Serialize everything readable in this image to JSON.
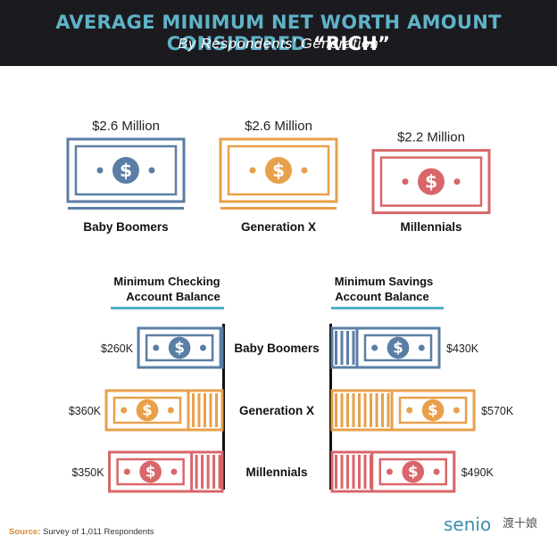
{
  "title_main": "Average Minimum Net Worth Amount Considered ",
  "title_quote": "“Rich”",
  "subtitle": "By Respondents' Generation",
  "colors": {
    "boomers": "#5b7ea6",
    "genx": "#e8a04a",
    "millennials": "#d9666a",
    "teal": "#4fb0c6",
    "dark": "#1b1b1f"
  },
  "chart_data": [
    {
      "type": "bar",
      "title": "Average Minimum Net Worth Amount Considered “Rich”",
      "subtitle": "By Respondents' Generation",
      "categories": [
        "Baby Boomers",
        "Generation X",
        "Millennials"
      ],
      "values": [
        2.6,
        2.6,
        2.2
      ],
      "labels": [
        "$2.6 Million",
        "$2.6 Million",
        "$2.2 Million"
      ],
      "unit": "Million $"
    },
    {
      "type": "bar",
      "title": "Minimum Checking Account Balance",
      "categories": [
        "Baby Boomers",
        "Generation X",
        "Millennials"
      ],
      "values": [
        260,
        360,
        350
      ],
      "labels": [
        "$260K",
        "$360K",
        "$350K"
      ],
      "unit": "Thousand $"
    },
    {
      "type": "bar",
      "title": "Minimum Savings Account Balance",
      "categories": [
        "Baby Boomers",
        "Generation X",
        "Millennials"
      ],
      "values": [
        430,
        570,
        490
      ],
      "labels": [
        "$430K",
        "$570K",
        "$490K"
      ],
      "unit": "Thousand $"
    }
  ],
  "checking_title_1": "Minimum Checking",
  "checking_title_2": "Account Balance",
  "savings_title_1": "Minimum Savings",
  "savings_title_2": "Account Balance",
  "source_label": "Source:",
  "source_text": " Survey of 1,011 Respondents",
  "logo_text": "senio",
  "watermark": "渡十娘"
}
